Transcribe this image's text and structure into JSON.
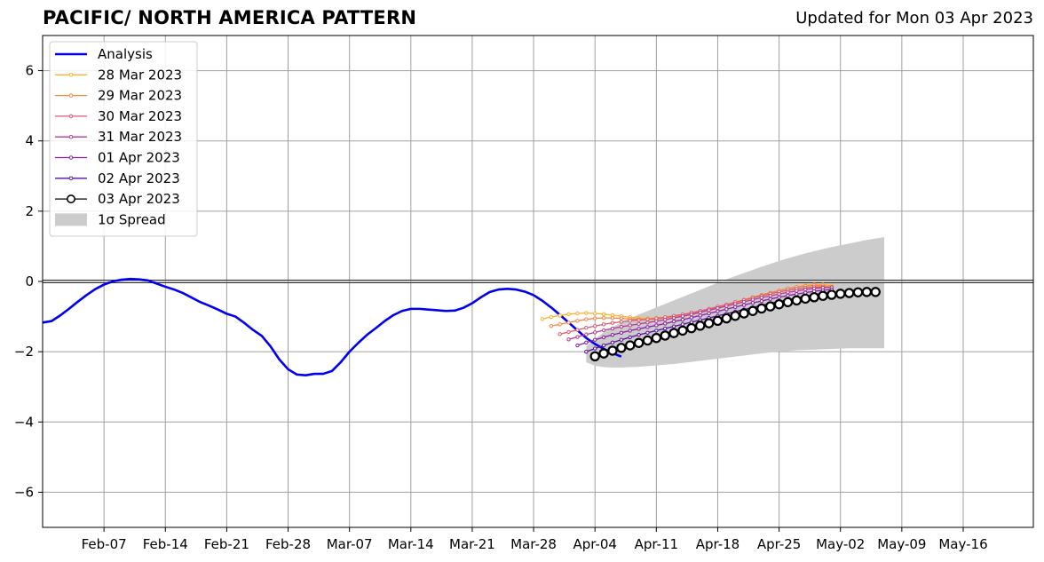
{
  "page": {
    "title": "PACIFIC/ NORTH AMERICA PATTERN",
    "subtitle": "Updated for Mon 03 Apr 2023"
  },
  "chart_data": {
    "type": "line",
    "title": "PACIFIC/ NORTH AMERICA PATTERN",
    "subtitle": "Updated for Mon 03 Apr 2023",
    "xlabel": "",
    "ylabel": "",
    "xlim": [
      "2023-01-31",
      "2023-05-24"
    ],
    "ylim": [
      -7,
      7
    ],
    "grid": true,
    "legend_position": "top-left",
    "x_ticks": [
      "2023-02-07",
      "2023-02-14",
      "2023-02-21",
      "2023-02-28",
      "2023-03-07",
      "2023-03-14",
      "2023-03-21",
      "2023-03-28",
      "2023-04-04",
      "2023-04-11",
      "2023-04-18",
      "2023-04-25",
      "2023-05-02",
      "2023-05-09",
      "2023-05-16"
    ],
    "x_tick_labels": [
      "Feb-07",
      "Feb-14",
      "Feb-21",
      "Feb-28",
      "Mar-07",
      "Mar-14",
      "Mar-21",
      "Mar-28",
      "Apr-04",
      "Apr-11",
      "Apr-18",
      "Apr-25",
      "May-02",
      "May-09",
      "May-16"
    ],
    "y_ticks": [
      -6,
      -4,
      -2,
      0,
      2,
      4,
      6
    ],
    "y_tick_labels": [
      "−6",
      "−4",
      "−2",
      "0",
      "2",
      "4",
      "6"
    ],
    "analysis": {
      "name": "Analysis",
      "color": "#0000ee",
      "start": "2023-01-31",
      "values": [
        -1.17,
        -1.13,
        -0.97,
        -0.78,
        -0.58,
        -0.39,
        -0.22,
        -0.09,
        0.0,
        0.05,
        0.07,
        0.06,
        0.03,
        -0.06,
        -0.15,
        -0.23,
        -0.33,
        -0.46,
        -0.59,
        -0.69,
        -0.8,
        -0.92,
        -1.0,
        -1.18,
        -1.38,
        -1.55,
        -1.85,
        -2.22,
        -2.5,
        -2.65,
        -2.67,
        -2.63,
        -2.63,
        -2.55,
        -2.3,
        -2.0,
        -1.75,
        -1.52,
        -1.33,
        -1.13,
        -0.96,
        -0.84,
        -0.78,
        -0.78,
        -0.8,
        -0.82,
        -0.84,
        -0.83,
        -0.75,
        -0.62,
        -0.45,
        -0.3,
        -0.23,
        -0.21,
        -0.23,
        -0.29,
        -0.39,
        -0.55,
        -0.74,
        -0.95,
        -1.17,
        -1.39,
        -1.61,
        -1.78,
        -1.92,
        -2.04,
        -2.14
      ]
    },
    "series": [
      {
        "name": "28 Mar 2023",
        "color": "#fcb02b",
        "start": "2023-03-29",
        "values": [
          -1.07,
          -1.01,
          -0.97,
          -0.93,
          -0.91,
          -0.9,
          -0.91,
          -0.93,
          -0.96,
          -0.99,
          -1.02,
          -1.04,
          -1.05,
          -1.04,
          -1.03,
          -1.0,
          -0.96,
          -0.91,
          -0.86,
          -0.8,
          -0.74,
          -0.68,
          -0.61,
          -0.54,
          -0.47,
          -0.4,
          -0.33,
          -0.26,
          -0.2,
          -0.15,
          -0.11,
          -0.09,
          -0.09,
          -0.12
        ]
      },
      {
        "name": "29 Mar 2023",
        "color": "#f0874a",
        "start": "2023-03-30",
        "values": [
          -1.27,
          -1.22,
          -1.17,
          -1.12,
          -1.08,
          -1.05,
          -1.04,
          -1.04,
          -1.05,
          -1.07,
          -1.08,
          -1.08,
          -1.07,
          -1.04,
          -1.0,
          -0.96,
          -0.91,
          -0.85,
          -0.79,
          -0.73,
          -0.66,
          -0.59,
          -0.52,
          -0.45,
          -0.38,
          -0.32,
          -0.26,
          -0.2,
          -0.16,
          -0.13,
          -0.11,
          -0.12,
          -0.15
        ]
      },
      {
        "name": "30 Mar 2023",
        "color": "#dd5a6e",
        "start": "2023-03-31",
        "values": [
          -1.5,
          -1.44,
          -1.38,
          -1.32,
          -1.27,
          -1.22,
          -1.18,
          -1.15,
          -1.12,
          -1.1,
          -1.08,
          -1.05,
          -1.02,
          -0.98,
          -0.94,
          -0.89,
          -0.84,
          -0.78,
          -0.72,
          -0.66,
          -0.59,
          -0.53,
          -0.47,
          -0.41,
          -0.35,
          -0.3,
          -0.25,
          -0.21,
          -0.18,
          -0.16,
          -0.16,
          -0.18
        ]
      },
      {
        "name": "31 Mar 2023",
        "color": "#b83c8e",
        "start": "2023-04-01",
        "values": [
          -1.65,
          -1.58,
          -1.51,
          -1.45,
          -1.39,
          -1.34,
          -1.29,
          -1.25,
          -1.21,
          -1.17,
          -1.13,
          -1.09,
          -1.04,
          -0.99,
          -0.94,
          -0.88,
          -0.82,
          -0.76,
          -0.7,
          -0.64,
          -0.58,
          -0.52,
          -0.46,
          -0.41,
          -0.36,
          -0.31,
          -0.27,
          -0.23,
          -0.2,
          -0.18,
          -0.17
        ]
      },
      {
        "name": "01 Apr 2023",
        "color": "#8b1fa2",
        "start": "2023-04-02",
        "values": [
          -1.82,
          -1.74,
          -1.66,
          -1.59,
          -1.52,
          -1.46,
          -1.4,
          -1.35,
          -1.3,
          -1.25,
          -1.2,
          -1.14,
          -1.09,
          -1.03,
          -0.97,
          -0.91,
          -0.85,
          -0.79,
          -0.73,
          -0.67,
          -0.61,
          -0.56,
          -0.5,
          -0.45,
          -0.4,
          -0.36,
          -0.32,
          -0.28,
          -0.25,
          -0.23
        ]
      },
      {
        "name": "02 Apr 2023",
        "color": "#5a0fa0",
        "start": "2023-04-03",
        "values": [
          -2.0,
          -1.91,
          -1.82,
          -1.74,
          -1.66,
          -1.59,
          -1.52,
          -1.46,
          -1.4,
          -1.34,
          -1.28,
          -1.22,
          -1.16,
          -1.1,
          -1.04,
          -0.98,
          -0.92,
          -0.86,
          -0.8,
          -0.74,
          -0.68,
          -0.62,
          -0.57,
          -0.52,
          -0.47,
          -0.42,
          -0.38,
          -0.34,
          -0.31
        ]
      },
      {
        "name": "03 Apr 2023",
        "color": "#000000",
        "start": "2023-04-04",
        "values": [
          -2.13,
          -2.05,
          -1.97,
          -1.89,
          -1.82,
          -1.75,
          -1.68,
          -1.61,
          -1.54,
          -1.47,
          -1.4,
          -1.33,
          -1.26,
          -1.19,
          -1.12,
          -1.05,
          -0.98,
          -0.91,
          -0.84,
          -0.77,
          -0.71,
          -0.65,
          -0.59,
          -0.54,
          -0.49,
          -0.45,
          -0.41,
          -0.38,
          -0.35,
          -0.33,
          -0.31,
          -0.3,
          -0.3
        ]
      }
    ],
    "spread": {
      "name": "1σ Spread",
      "color": "#cccccc",
      "start": "2023-04-03",
      "upper": [
        -1.85,
        -1.63,
        -1.45,
        -1.3,
        -1.17,
        -1.05,
        -0.94,
        -0.84,
        -0.74,
        -0.64,
        -0.54,
        -0.44,
        -0.34,
        -0.24,
        -0.14,
        -0.04,
        0.06,
        0.15,
        0.24,
        0.33,
        0.42,
        0.5,
        0.58,
        0.66,
        0.73,
        0.8,
        0.86,
        0.92,
        0.98,
        1.03,
        1.08,
        1.13,
        1.18,
        1.22,
        1.26
      ],
      "lower": [
        -2.3,
        -2.4,
        -2.44,
        -2.45,
        -2.45,
        -2.44,
        -2.43,
        -2.41,
        -2.39,
        -2.37,
        -2.35,
        -2.32,
        -2.29,
        -2.26,
        -2.23,
        -2.2,
        -2.17,
        -2.14,
        -2.11,
        -2.08,
        -2.05,
        -2.02,
        -2.0,
        -1.98,
        -1.96,
        -1.95,
        -1.94,
        -1.93,
        -1.92,
        -1.91,
        -1.9,
        -1.9,
        -1.9,
        -1.9,
        -1.9
      ]
    }
  }
}
